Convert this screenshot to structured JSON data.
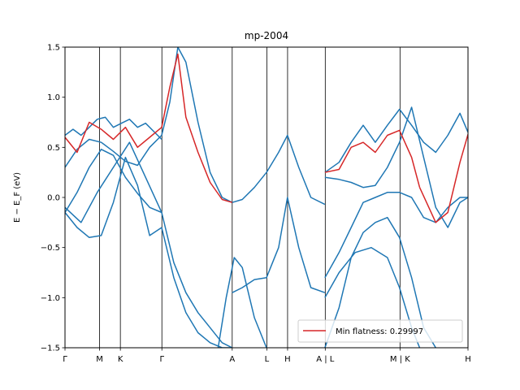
{
  "chart_data": {
    "type": "line",
    "title": "mp-2004",
    "ylabel": "E − E_F (eV)",
    "xlabel": "",
    "xlim": [
      0,
      1
    ],
    "ylim": [
      -1.5,
      1.5
    ],
    "yticks": [
      -1.5,
      -1.0,
      -0.5,
      0.0,
      0.5,
      1.0,
      1.5
    ],
    "ytick_labels": [
      "−1.5",
      "−1.0",
      "−0.5",
      "0.0",
      "0.5",
      "1.0",
      "1.5"
    ],
    "kpoints": [
      {
        "label": "Γ",
        "x": 0.0
      },
      {
        "label": "M",
        "x": 0.0859
      },
      {
        "label": "K",
        "x": 0.1374
      },
      {
        "label": "Γ",
        "x": 0.2404
      },
      {
        "label": "A",
        "x": 0.4149
      },
      {
        "label": "L",
        "x": 0.5008
      },
      {
        "label": "H",
        "x": 0.5523
      },
      {
        "label": "A | L",
        "x": 0.6458
      },
      {
        "label": "M | K",
        "x": 0.8313
      },
      {
        "label": "H",
        "x": 1.0
      }
    ],
    "legend": {
      "label": "Min flatness: 0.29997",
      "location": "lower-right"
    },
    "colors": {
      "bands": "#1f77b4",
      "flat_band": "#d62728"
    },
    "series": [
      {
        "color": "#1f77b4",
        "x": [
          0,
          0.02,
          0.04,
          0.06,
          0.08,
          0.1,
          0.12,
          0.14,
          0.16,
          0.18,
          0.2,
          0.22,
          0.24
        ],
        "y": [
          0.62,
          0.68,
          0.62,
          0.7,
          0.78,
          0.8,
          0.7,
          0.74,
          0.78,
          0.7,
          0.74,
          0.66,
          0.58
        ]
      },
      {
        "color": "#1f77b4",
        "x": [
          0,
          0.03,
          0.06,
          0.09,
          0.12,
          0.15,
          0.18,
          0.21,
          0.24
        ],
        "y": [
          0.3,
          0.48,
          0.58,
          0.55,
          0.46,
          0.36,
          0.32,
          0.5,
          0.62
        ]
      },
      {
        "color": "#1f77b4",
        "x": [
          0,
          0.03,
          0.06,
          0.09,
          0.12,
          0.15,
          0.18,
          0.21,
          0.24
        ],
        "y": [
          -0.15,
          0.05,
          0.3,
          0.48,
          0.42,
          0.2,
          0.04,
          -0.1,
          -0.15
        ]
      },
      {
        "color": "#1f77b4",
        "x": [
          0,
          0.03,
          0.06,
          0.09,
          0.12,
          0.15,
          0.18,
          0.21,
          0.24
        ],
        "y": [
          -0.15,
          -0.3,
          -0.4,
          -0.38,
          -0.05,
          0.4,
          0.12,
          -0.38,
          -0.3
        ]
      },
      {
        "color": "#1f77b4",
        "x": [
          0,
          0.04,
          0.08,
          0.12,
          0.16,
          0.2,
          0.24
        ],
        "y": [
          -0.1,
          -0.25,
          0.05,
          0.3,
          0.55,
          0.2,
          -0.15
        ]
      },
      {
        "color": "#1f77b4",
        "x": [
          0.24,
          0.26,
          0.28,
          0.3,
          0.33,
          0.36,
          0.39,
          0.415
        ],
        "y": [
          0.62,
          0.95,
          1.5,
          1.35,
          0.75,
          0.25,
          0.0,
          -0.05
        ]
      },
      {
        "color": "#1f77b4",
        "x": [
          0.415,
          0.44,
          0.47,
          0.5,
          0.53,
          0.552,
          0.58,
          0.61,
          0.645
        ],
        "y": [
          -0.05,
          -0.02,
          0.1,
          0.25,
          0.45,
          0.62,
          0.3,
          0.0,
          -0.07
        ]
      },
      {
        "color": "#1f77b4",
        "x": [
          0.24,
          0.27,
          0.3,
          0.33,
          0.36,
          0.39,
          0.415
        ],
        "y": [
          -0.15,
          -0.65,
          -0.95,
          -1.15,
          -1.3,
          -1.45,
          -1.5
        ]
      },
      {
        "color": "#1f77b4",
        "x": [
          0.24,
          0.27,
          0.3,
          0.33,
          0.36,
          0.39,
          0.415
        ],
        "y": [
          -0.3,
          -0.8,
          -1.15,
          -1.35,
          -1.45,
          -1.5,
          -1.5
        ]
      },
      {
        "color": "#1f77b4",
        "x": [
          0.415,
          0.44,
          0.47,
          0.5,
          0.53,
          0.552,
          0.58,
          0.61,
          0.645
        ],
        "y": [
          -0.95,
          -0.9,
          -0.82,
          -0.8,
          -0.5,
          0.0,
          -0.5,
          -0.9,
          -0.95
        ]
      },
      {
        "color": "#1f77b4",
        "x": [
          0.38,
          0.4,
          0.42,
          0.44,
          0.47,
          0.5
        ],
        "y": [
          -1.5,
          -1.0,
          -0.6,
          -0.7,
          -1.2,
          -1.5
        ]
      },
      {
        "color": "#1f77b4",
        "x": [
          0.645,
          0.68,
          0.71,
          0.74,
          0.77,
          0.8,
          0.83,
          0.86,
          0.89,
          0.92,
          0.95,
          0.98,
          1.0
        ],
        "y": [
          0.25,
          0.35,
          0.55,
          0.72,
          0.55,
          0.72,
          0.88,
          0.72,
          0.55,
          0.45,
          0.62,
          0.84,
          0.65
        ]
      },
      {
        "color": "#1f77b4",
        "x": [
          0.645,
          0.68,
          0.71,
          0.74,
          0.77,
          0.8,
          0.83,
          0.86,
          0.89,
          0.92,
          0.95,
          0.98,
          1.0
        ],
        "y": [
          0.2,
          0.18,
          0.15,
          0.1,
          0.12,
          0.3,
          0.55,
          0.9,
          0.4,
          -0.1,
          -0.3,
          -0.05,
          0.0
        ]
      },
      {
        "color": "#1f77b4",
        "x": [
          0.645,
          0.68,
          0.71,
          0.74,
          0.77,
          0.8,
          0.83,
          0.86,
          0.89,
          0.92,
          0.95,
          0.98,
          1.0
        ],
        "y": [
          -0.8,
          -0.55,
          -0.3,
          -0.05,
          0.0,
          0.05,
          0.05,
          0.0,
          -0.2,
          -0.25,
          -0.1,
          0.0,
          0.0
        ]
      },
      {
        "color": "#1f77b4",
        "x": [
          0.645,
          0.68,
          0.71,
          0.74,
          0.77,
          0.8,
          0.83,
          0.86,
          0.89,
          0.92
        ],
        "y": [
          -1.5,
          -1.1,
          -0.6,
          -0.35,
          -0.25,
          -0.2,
          -0.4,
          -0.8,
          -1.3,
          -1.5
        ]
      },
      {
        "color": "#1f77b4",
        "x": [
          0.645,
          0.68,
          0.72,
          0.76,
          0.8,
          0.83,
          0.86,
          0.88
        ],
        "y": [
          -1.0,
          -0.75,
          -0.55,
          -0.5,
          -0.6,
          -0.9,
          -1.3,
          -1.5
        ]
      },
      {
        "color": "#d62728",
        "x": [
          0,
          0.03,
          0.06,
          0.09,
          0.12,
          0.15,
          0.18,
          0.21,
          0.24
        ],
        "y": [
          0.6,
          0.45,
          0.75,
          0.68,
          0.58,
          0.7,
          0.5,
          0.6,
          0.7
        ]
      },
      {
        "color": "#d62728",
        "x": [
          0.24,
          0.26,
          0.28,
          0.3,
          0.33,
          0.36,
          0.39,
          0.415
        ],
        "y": [
          0.7,
          1.1,
          1.43,
          0.8,
          0.45,
          0.15,
          -0.02,
          -0.05
        ]
      },
      {
        "color": "#d62728",
        "x": [
          0.645,
          0.68,
          0.71,
          0.74,
          0.77,
          0.8,
          0.83,
          0.86,
          0.88
        ],
        "y": [
          0.25,
          0.28,
          0.5,
          0.55,
          0.45,
          0.62,
          0.67,
          0.4,
          0.1
        ]
      },
      {
        "color": "#d62728",
        "x": [
          0.88,
          0.92,
          0.95,
          0.98,
          1.0
        ],
        "y": [
          0.1,
          -0.25,
          -0.15,
          0.35,
          0.63
        ]
      }
    ]
  }
}
